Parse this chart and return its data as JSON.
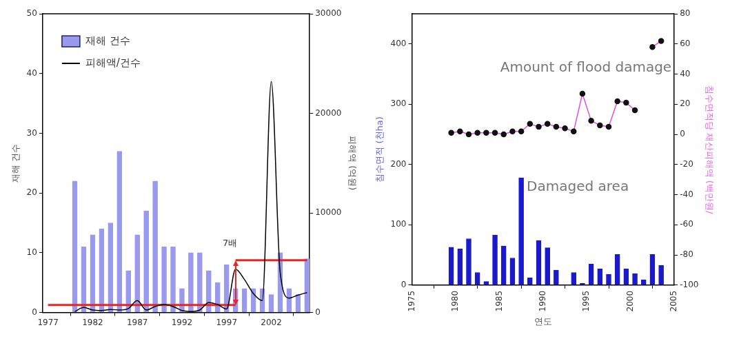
{
  "chart_data": [
    {
      "type": "bar",
      "ylabel": "재해 건수",
      "y2label": "피해액 (억원)",
      "legend": "top left",
      "xlim": [
        1976.4,
        2006.3
      ],
      "xticks": [
        1977,
        1982,
        1987,
        1992,
        1997,
        2002
      ],
      "ylim": [
        0,
        50
      ],
      "yticks": [
        0,
        10,
        20,
        30,
        40,
        50
      ],
      "y2lim": [
        0,
        30000
      ],
      "y2ticks": [
        0,
        10000,
        20000,
        30000
      ],
      "x": [
        1980,
        1981,
        1982,
        1983,
        1984,
        1985,
        1986,
        1987,
        1988,
        1989,
        1990,
        1991,
        1992,
        1993,
        1994,
        1995,
        1996,
        1997,
        1998,
        1999,
        2000,
        2001,
        2002,
        2003,
        2004,
        2005,
        2006
      ],
      "series": [
        {
          "name": "재해 건수",
          "color": "#9999ee",
          "values": [
            22,
            11,
            13,
            14,
            15,
            27,
            7,
            13,
            17,
            22,
            11,
            11,
            4,
            10,
            10,
            7,
            5,
            8,
            4,
            4,
            4,
            4,
            3,
            10,
            4,
            3,
            9
          ]
        },
        {
          "name": "피해액/건수",
          "type": "line",
          "axis": "y2",
          "color": "#000000",
          "values": [
            100,
            500,
            250,
            200,
            300,
            250,
            400,
            1200,
            250,
            600,
            800,
            600,
            200,
            100,
            250,
            1000,
            800,
            350,
            4350,
            3300,
            1900,
            1200,
            23200,
            4000,
            1450,
            1750,
            2000
          ]
        },
        {
          "type": "line",
          "axis": "y2",
          "color": "#ee2222",
          "x": [
            1977,
            1998
          ],
          "values": [
            750,
            750
          ]
        },
        {
          "type": "line",
          "axis": "y2",
          "color": "#ee2222",
          "x": [
            1998,
            2006
          ],
          "values": [
            5250,
            5250
          ]
        }
      ],
      "annotations": [
        "7배"
      ]
    },
    {
      "type": "bar",
      "xlabel": "연도",
      "ylabel": "침수면적 (천ha)",
      "y2label": "침수면적당 재산피해액 (백만원/",
      "marker": "circle",
      "xlim": [
        1975,
        2005
      ],
      "xticks": [
        1975,
        1980,
        1985,
        1990,
        1995,
        2000,
        2005
      ],
      "ylim": [
        0,
        450
      ],
      "yticks": [
        0,
        100,
        200,
        300,
        400
      ],
      "y2lim": [
        -100,
        80
      ],
      "y2ticks": [
        -100,
        -80,
        -60,
        -40,
        -20,
        0,
        20,
        40,
        60,
        80
      ],
      "x": [
        1979.5,
        1980.5,
        1981.5,
        1982.5,
        1983.5,
        1984.5,
        1985.5,
        1986.5,
        1987.5,
        1988.5,
        1989.5,
        1990.5,
        1991.5,
        1992.5,
        1993.5,
        1994.5,
        1995.5,
        1996.5,
        1997.5,
        1998.5,
        1999.5,
        2000.5,
        2001.5,
        2002.5,
        2003.5
      ],
      "series": [
        {
          "name": "Damaged area",
          "color": "#1a1acc",
          "values": [
            63,
            60,
            77,
            21,
            6,
            83,
            65,
            45,
            178,
            12,
            74,
            62,
            25,
            null,
            21,
            3,
            35,
            27,
            18,
            51,
            27,
            19,
            9,
            51,
            33
          ]
        },
        {
          "name": "Amount of flood damage",
          "type": "line",
          "axis": "y2",
          "color": "#e050e0",
          "values": [
            1,
            2,
            0,
            1,
            1,
            1,
            0,
            2,
            2,
            7,
            5,
            7,
            5,
            4,
            2,
            27,
            9,
            6,
            5,
            22,
            21,
            16,
            null,
            58,
            62
          ]
        }
      ]
    }
  ]
}
